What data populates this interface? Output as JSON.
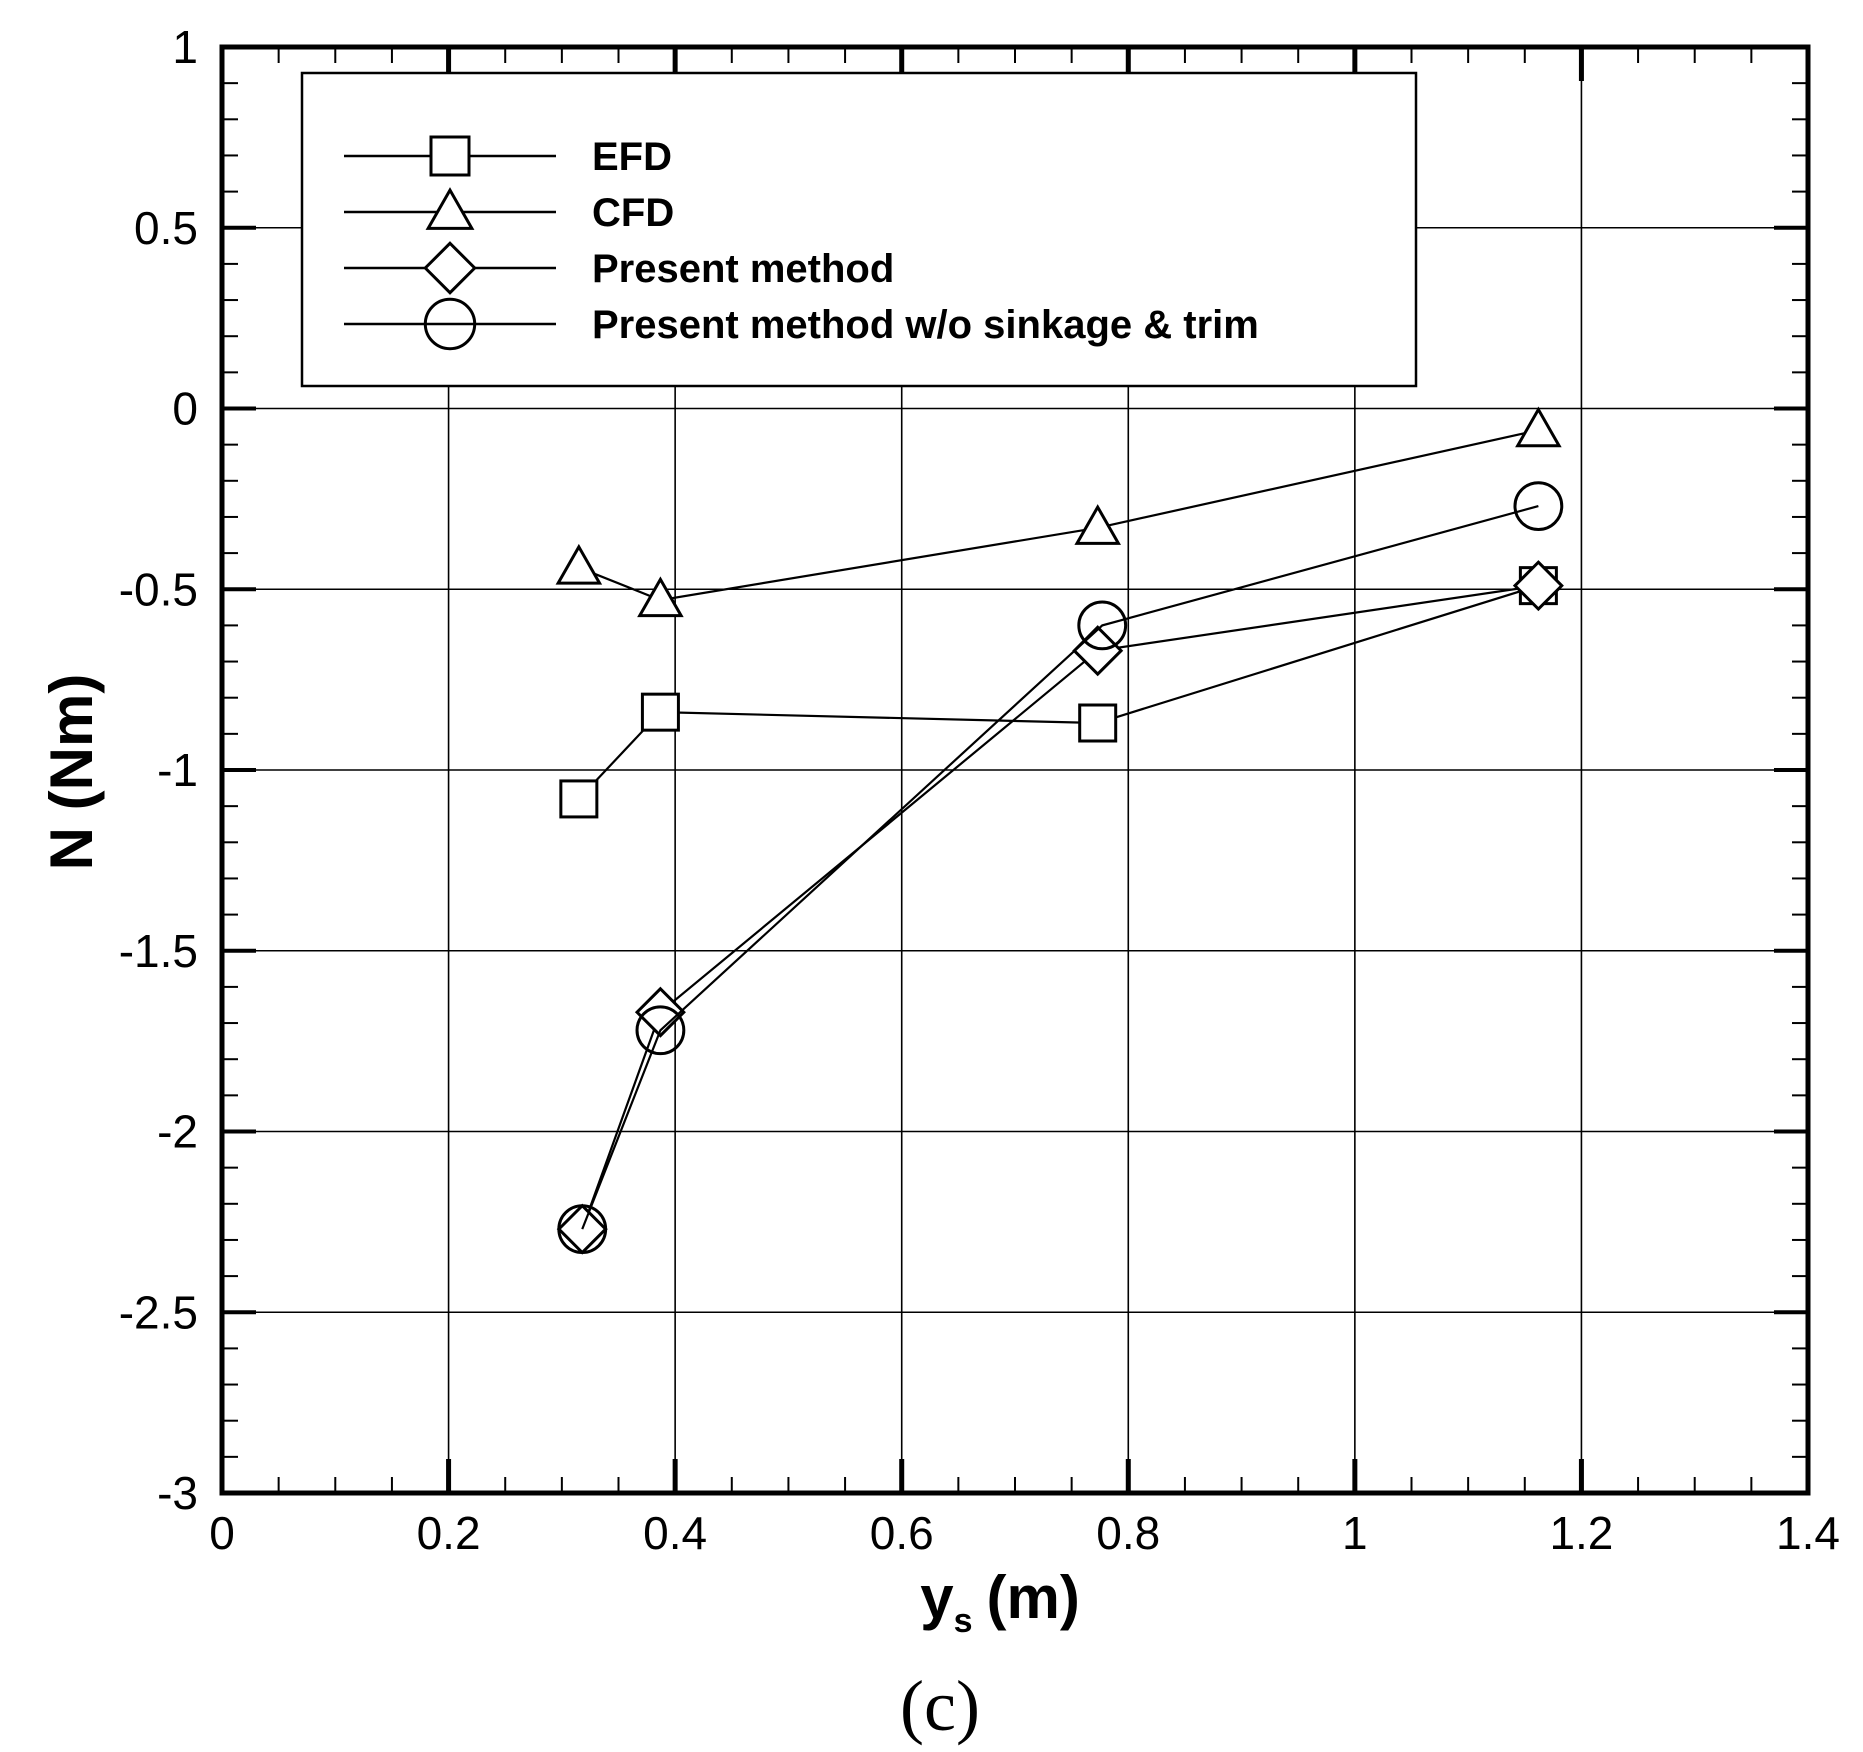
{
  "chart_data": {
    "type": "line",
    "xlabel": "y",
    "xlabel_sub": "s",
    "xlabel_unit": "(m)",
    "ylabel": "N (Nm)",
    "xlim": [
      0,
      1.4
    ],
    "ylim": [
      -3,
      1
    ],
    "xticks": [
      0,
      0.2,
      0.4,
      0.6,
      0.8,
      1,
      1.2,
      1.4
    ],
    "xtick_labels": [
      "0",
      "0.2",
      "0.4",
      "0.6",
      "0.8",
      "1",
      "1.2",
      "1.4"
    ],
    "yticks": [
      -3,
      -2.5,
      -2,
      -1.5,
      -1,
      -0.5,
      0,
      0.5,
      1
    ],
    "ytick_labels": [
      "-3",
      "-2.5",
      "-2",
      "-1.5",
      "-1",
      "-0.5",
      "0",
      "0.5",
      "1"
    ],
    "grid": true,
    "legend_position": "top-left",
    "panel_label": "(c)",
    "series": [
      {
        "name": "EFD",
        "marker": "square",
        "x": [
          0.315,
          0.387,
          0.773,
          1.162
        ],
        "y": [
          -1.08,
          -0.84,
          -0.87,
          -0.49
        ]
      },
      {
        "name": "CFD",
        "marker": "triangle",
        "x": [
          0.315,
          0.387,
          0.773,
          1.162
        ],
        "y": [
          -0.44,
          -0.53,
          -0.33,
          -0.06
        ]
      },
      {
        "name": "Present method",
        "marker": "diamond",
        "x": [
          0.318,
          0.387,
          0.773,
          1.162
        ],
        "y": [
          -2.27,
          -1.67,
          -0.67,
          -0.49
        ]
      },
      {
        "name": "Present method w/o sinkage & trim",
        "marker": "circle",
        "x": [
          0.318,
          0.387,
          0.777,
          1.162
        ],
        "y": [
          -2.27,
          -1.72,
          -0.6,
          -0.27
        ]
      }
    ]
  }
}
